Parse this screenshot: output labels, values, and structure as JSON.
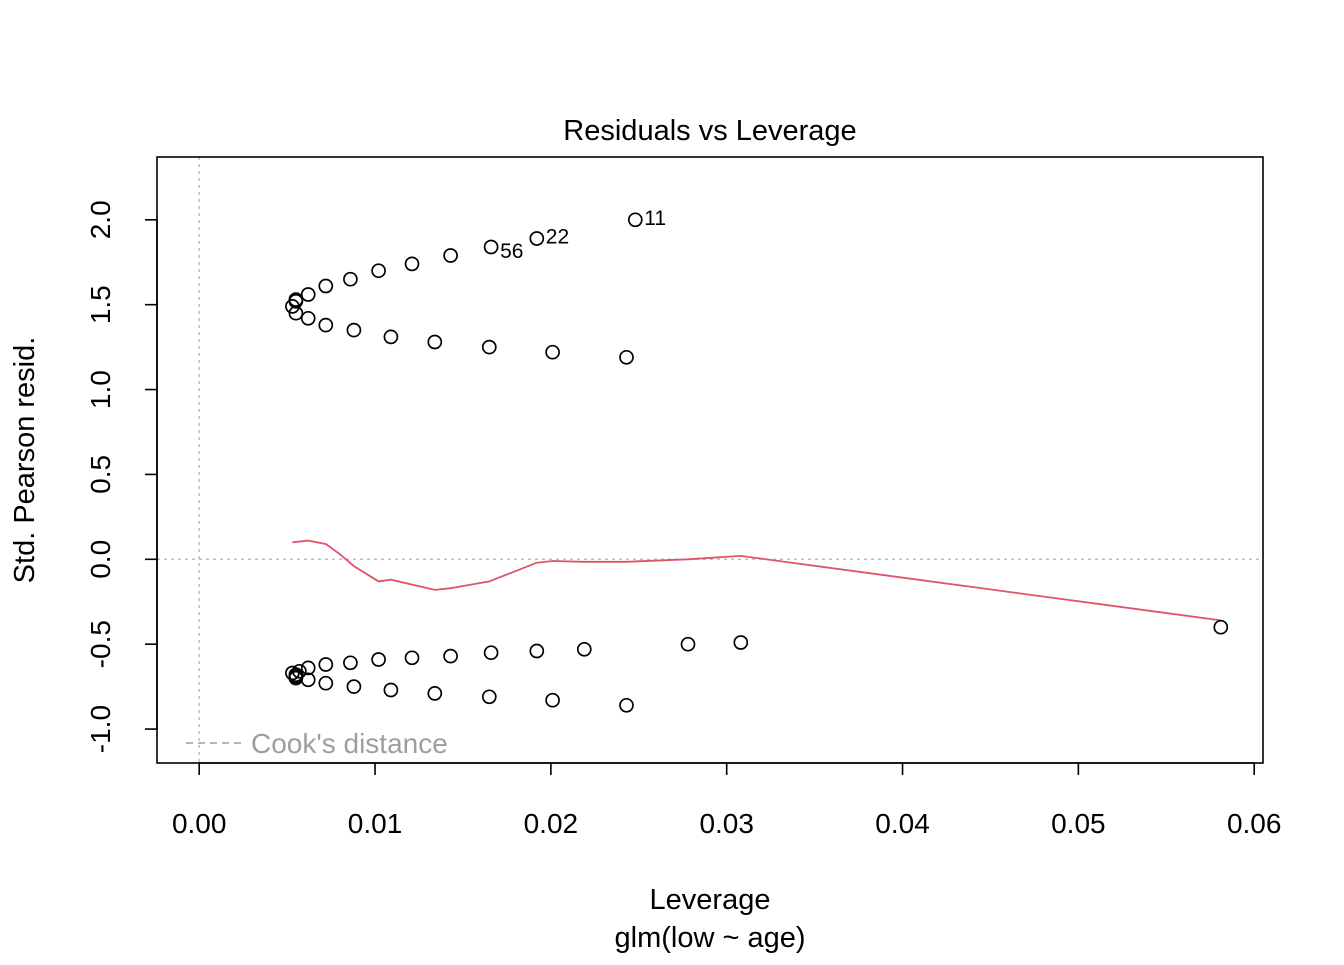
{
  "chart_data": {
    "type": "scatter",
    "title": "Residuals vs Leverage",
    "xlabel": "Leverage",
    "subtitle": "glm(low ~ age)",
    "ylabel": "Std. Pearson resid.",
    "xlim": [
      -0.0024,
      0.0605
    ],
    "ylim": [
      -1.2,
      2.37
    ],
    "xticks": [
      "0.00",
      "0.01",
      "0.02",
      "0.03",
      "0.04",
      "0.05",
      "0.06"
    ],
    "xtick_values": [
      0,
      0.01,
      0.02,
      0.03,
      0.04,
      0.05,
      0.06
    ],
    "yticks": [
      "-1.0",
      "-0.5",
      "0.0",
      "0.5",
      "1.0",
      "1.5",
      "2.0"
    ],
    "ytick_values": [
      -1.0,
      -0.5,
      0.0,
      0.5,
      1.0,
      1.5,
      2.0
    ],
    "colors": {
      "points": "#000000",
      "smooth": "#df536b",
      "reference": "#bebebe",
      "legend": "#9e9e9e"
    },
    "legend": {
      "label": "Cook's distance",
      "position": "bottom-left"
    },
    "series": [
      {
        "name": "residuals",
        "x": [
          0.0053,
          0.0055,
          0.0055,
          0.0062,
          0.0072,
          0.0086,
          0.0102,
          0.0121,
          0.0143,
          0.0166,
          0.0192,
          0.0248,
          0.0055,
          0.0062,
          0.0072,
          0.0088,
          0.0109,
          0.0134,
          0.0165,
          0.0201,
          0.0243,
          0.0053,
          0.0055,
          0.0055,
          0.0057,
          0.0062,
          0.0072,
          0.0086,
          0.0102,
          0.0121,
          0.0143,
          0.0166,
          0.0192,
          0.0219,
          0.0278,
          0.0308,
          0.0581,
          0.0055,
          0.0062,
          0.0072,
          0.0088,
          0.0109,
          0.0134,
          0.0165,
          0.0201,
          0.0243
        ],
        "y": [
          1.49,
          1.52,
          1.53,
          1.56,
          1.61,
          1.65,
          1.7,
          1.74,
          1.79,
          1.84,
          1.89,
          2.0,
          1.45,
          1.42,
          1.38,
          1.35,
          1.31,
          1.28,
          1.25,
          1.22,
          1.19,
          -0.67,
          -0.68,
          -0.7,
          -0.66,
          -0.64,
          -0.62,
          -0.61,
          -0.59,
          -0.58,
          -0.57,
          -0.55,
          -0.54,
          -0.53,
          -0.5,
          -0.49,
          -0.4,
          -0.69,
          -0.71,
          -0.73,
          -0.75,
          -0.77,
          -0.79,
          -0.81,
          -0.83,
          -0.86
        ]
      }
    ],
    "smooth": {
      "x": [
        0.0053,
        0.0062,
        0.0072,
        0.008,
        0.0088,
        0.0102,
        0.0109,
        0.0134,
        0.0143,
        0.0165,
        0.0192,
        0.0201,
        0.0219,
        0.0243,
        0.0278,
        0.0308,
        0.0581
      ],
      "y": [
        0.1,
        0.11,
        0.09,
        0.03,
        -0.04,
        -0.13,
        -0.12,
        -0.18,
        -0.17,
        -0.13,
        -0.02,
        -0.01,
        -0.015,
        -0.015,
        0.0,
        0.02,
        -0.36
      ]
    },
    "annotations": [
      {
        "text": "11",
        "x": 0.0248,
        "y": 2.0
      },
      {
        "text": "22",
        "x": 0.0192,
        "y": 1.89
      },
      {
        "text": "56",
        "x": 0.0166,
        "y": 1.84,
        "side": "right-low"
      }
    ]
  }
}
